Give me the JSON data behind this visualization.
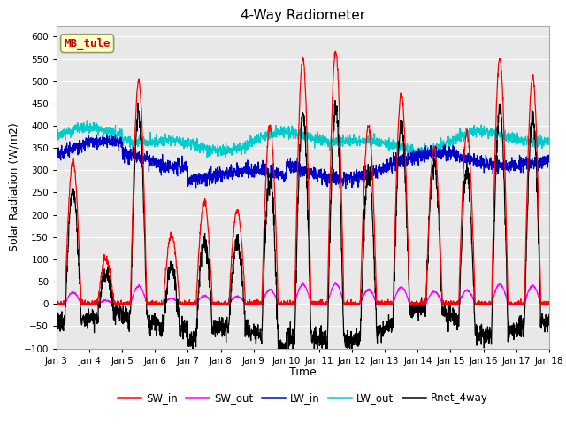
{
  "title": "4-Way Radiometer",
  "xlabel": "Time",
  "ylabel": "Solar Radiation (W/m2)",
  "ylim": [
    -100,
    625
  ],
  "yticks": [
    -100,
    -50,
    0,
    50,
    100,
    150,
    200,
    250,
    300,
    350,
    400,
    450,
    500,
    550,
    600
  ],
  "xtick_labels": [
    "Jan 3",
    "Jan 4",
    "Jan 5",
    "Jan 6",
    "Jan 7",
    "Jan 8",
    "Jan 9",
    "Jan 10",
    "Jan 11",
    "Jan 12",
    "Jan 13",
    "Jan 14",
    "Jan 15",
    "Jan 16",
    "Jan 17",
    "Jan 18"
  ],
  "colors": {
    "SW_in": "#ff0000",
    "SW_out": "#ff00ff",
    "LW_in": "#0000cc",
    "LW_out": "#00cccc",
    "Rnet_4way": "#000000"
  },
  "bg_color": "#e8e8e8",
  "box_color": "#ffffcc",
  "box_text": "MB_tule",
  "box_text_color": "#cc0000",
  "n_days": 15,
  "n_pts_per_day": 144
}
